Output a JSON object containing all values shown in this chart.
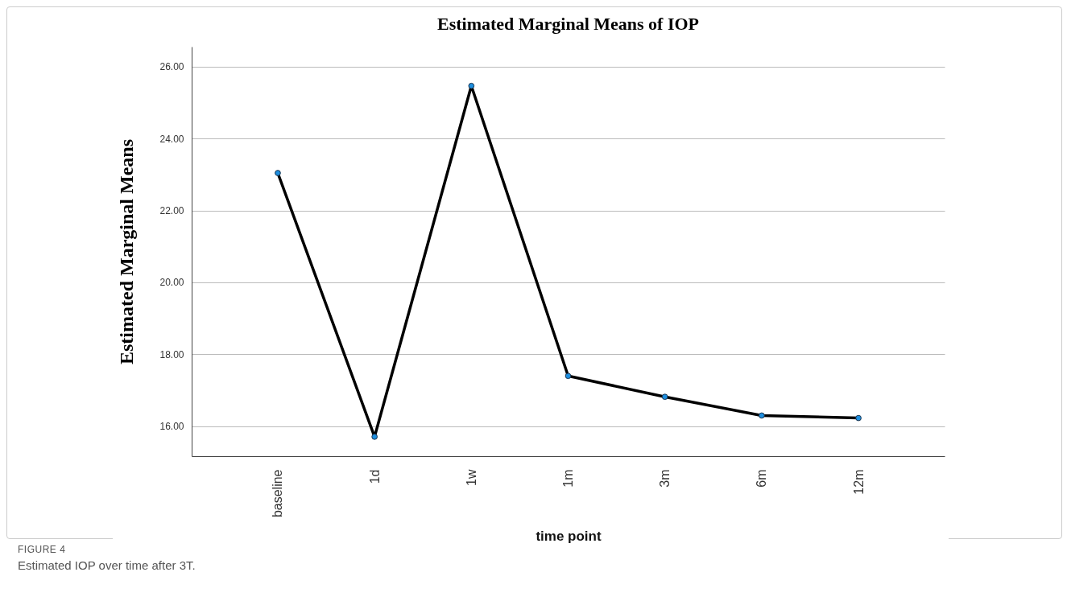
{
  "chart_data": {
    "type": "line",
    "title": "Estimated Marginal Means of IOP",
    "xlabel": "time point",
    "ylabel": "Estimated Marginal Means",
    "categories": [
      "baseline",
      "1d",
      "1w",
      "1m",
      "3m",
      "6m",
      "12m"
    ],
    "series": [
      {
        "color": "#000000",
        "values": [
          23.04,
          15.71,
          25.46,
          17.4,
          16.82,
          16.3,
          16.23
        ]
      }
    ],
    "ylim": [
      15.17,
      26.55
    ],
    "yticks": [
      {
        "value": 16,
        "label": "16.00"
      },
      {
        "value": 18,
        "label": "18.00"
      },
      {
        "value": 20,
        "label": "20.00"
      },
      {
        "value": 22,
        "label": "22.00"
      },
      {
        "value": 24,
        "label": "24.00"
      },
      {
        "value": 26,
        "label": "26.00"
      }
    ],
    "grid": "y",
    "marker": "circle",
    "line_style": "solid",
    "annotations": [
      "FIGURE 4",
      "Estimated IOP over time after 3T."
    ]
  }
}
